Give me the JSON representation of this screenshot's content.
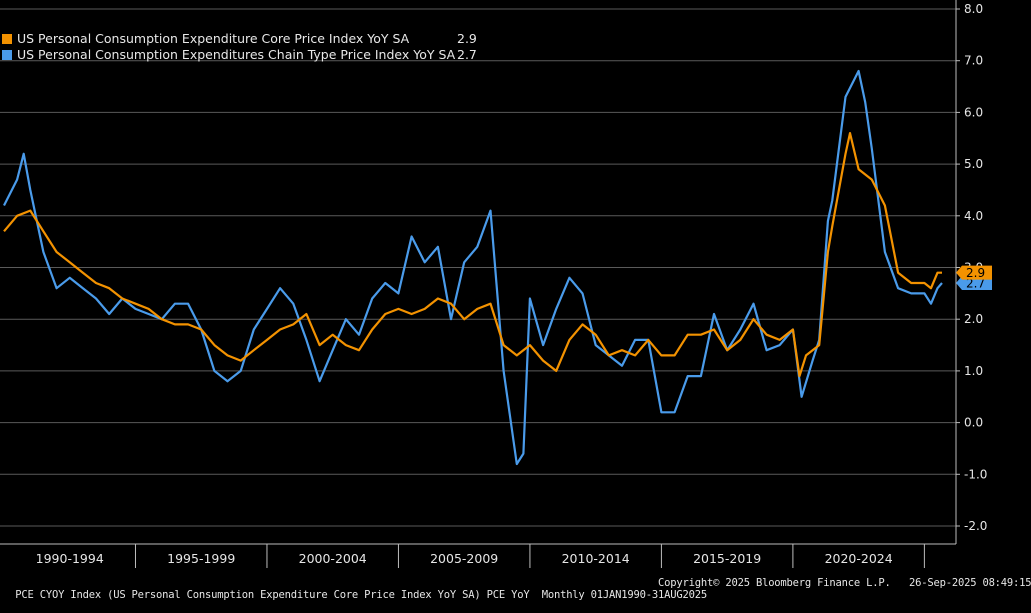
{
  "chart_data": {
    "type": "line",
    "legend": {
      "core_label": "US Personal Consumption Expenditure Core Price Index YoY SA",
      "core_value": "2.9",
      "headline_label": "US Personal Consumption Expenditures Chain Type Price Index YoY SA",
      "headline_value": "2.7"
    },
    "x_tick_labels": [
      "1990-1994",
      "1995-1999",
      "2000-2004",
      "2005-2009",
      "2010-2014",
      "2015-2019",
      "2020-2024"
    ],
    "y_tick_labels": [
      "8.0",
      "7.0",
      "6.0",
      "5.0",
      "4.0",
      "3.0",
      "2.0",
      "1.0",
      "0.0",
      "-1.0",
      "-2.0"
    ],
    "ylim": [
      -2.3,
      8.0
    ],
    "xlim": [
      1990.0,
      2025.67
    ],
    "grid": true,
    "legend_position": "top-left",
    "series": [
      {
        "name": "US Personal Consumption Expenditure Core Price Index YoY SA",
        "color": "#f39200",
        "end_label": "2.9",
        "points": [
          [
            1990.0,
            3.7
          ],
          [
            1990.5,
            4.0
          ],
          [
            1991.0,
            4.1
          ],
          [
            1991.5,
            3.7
          ],
          [
            1992.0,
            3.3
          ],
          [
            1992.5,
            3.1
          ],
          [
            1993.0,
            2.9
          ],
          [
            1993.5,
            2.7
          ],
          [
            1994.0,
            2.6
          ],
          [
            1994.5,
            2.4
          ],
          [
            1995.0,
            2.3
          ],
          [
            1995.5,
            2.2
          ],
          [
            1996.0,
            2.0
          ],
          [
            1996.5,
            1.9
          ],
          [
            1997.0,
            1.9
          ],
          [
            1997.5,
            1.8
          ],
          [
            1998.0,
            1.5
          ],
          [
            1998.5,
            1.3
          ],
          [
            1999.0,
            1.2
          ],
          [
            1999.5,
            1.4
          ],
          [
            2000.0,
            1.6
          ],
          [
            2000.5,
            1.8
          ],
          [
            2001.0,
            1.9
          ],
          [
            2001.5,
            2.1
          ],
          [
            2002.0,
            1.5
          ],
          [
            2002.5,
            1.7
          ],
          [
            2003.0,
            1.5
          ],
          [
            2003.5,
            1.4
          ],
          [
            2004.0,
            1.8
          ],
          [
            2004.5,
            2.1
          ],
          [
            2005.0,
            2.2
          ],
          [
            2005.5,
            2.1
          ],
          [
            2006.0,
            2.2
          ],
          [
            2006.5,
            2.4
          ],
          [
            2007.0,
            2.3
          ],
          [
            2007.5,
            2.0
          ],
          [
            2008.0,
            2.2
          ],
          [
            2008.5,
            2.3
          ],
          [
            2009.0,
            1.5
          ],
          [
            2009.5,
            1.3
          ],
          [
            2010.0,
            1.5
          ],
          [
            2010.5,
            1.2
          ],
          [
            2011.0,
            1.0
          ],
          [
            2011.5,
            1.6
          ],
          [
            2012.0,
            1.9
          ],
          [
            2012.5,
            1.7
          ],
          [
            2013.0,
            1.3
          ],
          [
            2013.5,
            1.4
          ],
          [
            2014.0,
            1.3
          ],
          [
            2014.5,
            1.6
          ],
          [
            2015.0,
            1.3
          ],
          [
            2015.5,
            1.3
          ],
          [
            2016.0,
            1.7
          ],
          [
            2016.5,
            1.7
          ],
          [
            2017.0,
            1.8
          ],
          [
            2017.5,
            1.4
          ],
          [
            2018.0,
            1.6
          ],
          [
            2018.5,
            2.0
          ],
          [
            2019.0,
            1.7
          ],
          [
            2019.5,
            1.6
          ],
          [
            2020.0,
            1.8
          ],
          [
            2020.25,
            0.9
          ],
          [
            2020.5,
            1.3
          ],
          [
            2021.0,
            1.5
          ],
          [
            2021.33,
            3.3
          ],
          [
            2021.5,
            3.8
          ],
          [
            2022.0,
            5.2
          ],
          [
            2022.17,
            5.6
          ],
          [
            2022.5,
            4.9
          ],
          [
            2023.0,
            4.7
          ],
          [
            2023.5,
            4.2
          ],
          [
            2024.0,
            2.9
          ],
          [
            2024.5,
            2.7
          ],
          [
            2025.0,
            2.7
          ],
          [
            2025.25,
            2.6
          ],
          [
            2025.5,
            2.9
          ],
          [
            2025.67,
            2.9
          ]
        ]
      },
      {
        "name": "US Personal Consumption Expenditures Chain Type Price Index YoY SA",
        "color": "#4a9bea",
        "end_label": "2.7",
        "points": [
          [
            1990.0,
            4.2
          ],
          [
            1990.5,
            4.7
          ],
          [
            1990.75,
            5.2
          ],
          [
            1991.0,
            4.5
          ],
          [
            1991.5,
            3.3
          ],
          [
            1992.0,
            2.6
          ],
          [
            1992.5,
            2.8
          ],
          [
            1993.0,
            2.6
          ],
          [
            1993.5,
            2.4
          ],
          [
            1994.0,
            2.1
          ],
          [
            1994.5,
            2.4
          ],
          [
            1995.0,
            2.2
          ],
          [
            1995.5,
            2.1
          ],
          [
            1996.0,
            2.0
          ],
          [
            1996.5,
            2.3
          ],
          [
            1997.0,
            2.3
          ],
          [
            1997.5,
            1.8
          ],
          [
            1998.0,
            1.0
          ],
          [
            1998.5,
            0.8
          ],
          [
            1999.0,
            1.0
          ],
          [
            1999.5,
            1.8
          ],
          [
            2000.0,
            2.2
          ],
          [
            2000.5,
            2.6
          ],
          [
            2001.0,
            2.3
          ],
          [
            2001.5,
            1.6
          ],
          [
            2002.0,
            0.8
          ],
          [
            2002.5,
            1.4
          ],
          [
            2003.0,
            2.0
          ],
          [
            2003.5,
            1.7
          ],
          [
            2004.0,
            2.4
          ],
          [
            2004.5,
            2.7
          ],
          [
            2005.0,
            2.5
          ],
          [
            2005.5,
            3.6
          ],
          [
            2006.0,
            3.1
          ],
          [
            2006.5,
            3.4
          ],
          [
            2007.0,
            2.0
          ],
          [
            2007.5,
            3.1
          ],
          [
            2008.0,
            3.4
          ],
          [
            2008.5,
            4.1
          ],
          [
            2009.0,
            1.0
          ],
          [
            2009.5,
            -0.8
          ],
          [
            2009.75,
            -0.6
          ],
          [
            2010.0,
            2.4
          ],
          [
            2010.5,
            1.5
          ],
          [
            2011.0,
            2.2
          ],
          [
            2011.5,
            2.8
          ],
          [
            2012.0,
            2.5
          ],
          [
            2012.5,
            1.5
          ],
          [
            2013.0,
            1.3
          ],
          [
            2013.5,
            1.1
          ],
          [
            2014.0,
            1.6
          ],
          [
            2014.5,
            1.6
          ],
          [
            2015.0,
            0.2
          ],
          [
            2015.5,
            0.2
          ],
          [
            2016.0,
            0.9
          ],
          [
            2016.5,
            0.9
          ],
          [
            2017.0,
            2.1
          ],
          [
            2017.5,
            1.4
          ],
          [
            2018.0,
            1.8
          ],
          [
            2018.5,
            2.3
          ],
          [
            2019.0,
            1.4
          ],
          [
            2019.5,
            1.5
          ],
          [
            2020.0,
            1.8
          ],
          [
            2020.33,
            0.5
          ],
          [
            2020.75,
            1.2
          ],
          [
            2021.0,
            1.6
          ],
          [
            2021.33,
            3.9
          ],
          [
            2021.5,
            4.3
          ],
          [
            2022.0,
            6.3
          ],
          [
            2022.5,
            6.8
          ],
          [
            2022.75,
            6.2
          ],
          [
            2023.0,
            5.3
          ],
          [
            2023.5,
            3.3
          ],
          [
            2024.0,
            2.6
          ],
          [
            2024.5,
            2.5
          ],
          [
            2025.0,
            2.5
          ],
          [
            2025.25,
            2.3
          ],
          [
            2025.5,
            2.6
          ],
          [
            2025.67,
            2.7
          ]
        ]
      }
    ]
  },
  "footer": {
    "left": "PCE CYOY Index (US Personal Consumption Expenditure Core Price Index YoY SA) PCE YoY  Monthly 01JAN1990-31AUG2025",
    "right": "Copyright© 2025 Bloomberg Finance L.P.   26-Sep-2025 08:49:15"
  }
}
